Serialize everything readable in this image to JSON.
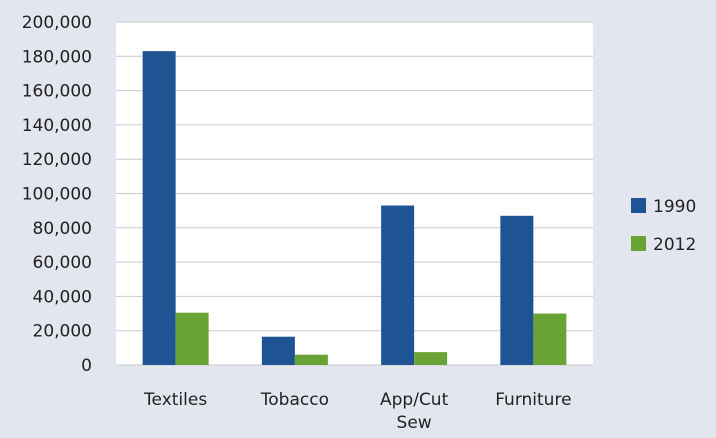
{
  "chart_data": {
    "type": "bar",
    "title": "",
    "xlabel": "",
    "ylabel": "",
    "categories": [
      [
        "Textiles"
      ],
      [
        "Tobacco"
      ],
      [
        "App/Cut",
        "Sew"
      ],
      [
        "Furniture"
      ]
    ],
    "ylim": [
      0,
      200000
    ],
    "yticks": [
      0,
      20000,
      40000,
      60000,
      80000,
      100000,
      120000,
      140000,
      160000,
      180000,
      200000
    ],
    "ytick_labels": [
      "0",
      "20,000",
      "40,000",
      "60,000",
      "80,000",
      "100,000",
      "120,000",
      "140,000",
      "160,000",
      "180,000",
      "200,000"
    ],
    "grid": true,
    "legend_position": "right",
    "series": [
      {
        "name": "1990",
        "color": "#1f5494",
        "values": [
          183000,
          16500,
          93000,
          87000
        ]
      },
      {
        "name": "2012",
        "color": "#6aa335",
        "values": [
          30500,
          6000,
          7500,
          30000
        ]
      }
    ]
  },
  "colors": {
    "page_background": "#e4e6ef",
    "plot_background": "#ffffff",
    "gridline": "#c9c9c9"
  }
}
